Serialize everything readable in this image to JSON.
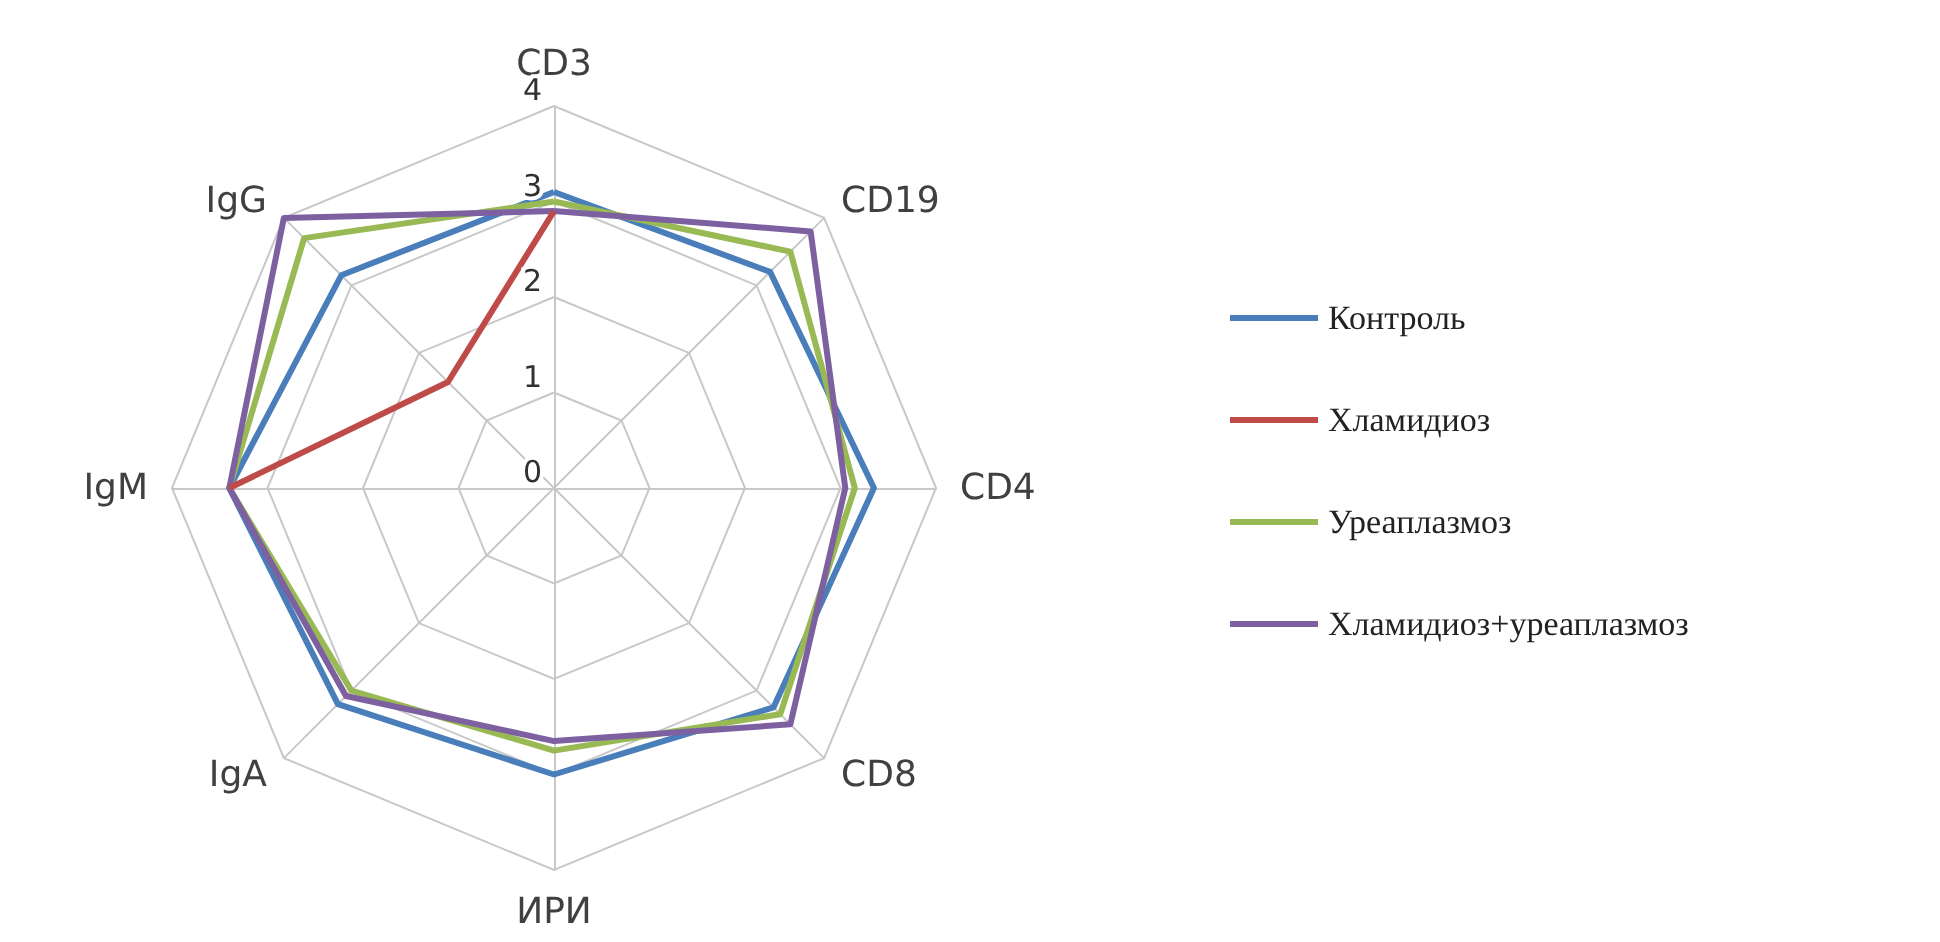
{
  "chart_data": {
    "type": "radar",
    "categories": [
      "CD3",
      "CD19",
      "CD4",
      "CD8",
      "ИРИ",
      "IgA",
      "IgM",
      "IgG"
    ],
    "ylim": [
      0,
      4
    ],
    "yticks": [
      0,
      1,
      2,
      3,
      4
    ],
    "grid": true,
    "legend": "right",
    "marker": "none",
    "line_style": "solid",
    "series": [
      {
        "name": "Контроль",
        "color": "#4a7ebb",
        "values": [
          3.1,
          3.2,
          3.35,
          3.25,
          3.0,
          3.2,
          3.4,
          3.15
        ]
      },
      {
        "name": "Хламидиоз",
        "color": "#be4b48",
        "values": [
          2.9,
          null,
          null,
          null,
          null,
          null,
          3.4,
          1.57
        ]
      },
      {
        "name": "Уреаплазмоз",
        "color": "#98b954",
        "values": [
          3.0,
          3.5,
          3.15,
          3.35,
          2.75,
          3.0,
          3.4,
          3.7
        ]
      },
      {
        "name": "Хламидиоз+уреаплазмоз",
        "color": "#7d60a0",
        "values": [
          2.9,
          3.8,
          3.05,
          3.5,
          2.65,
          3.08,
          3.4,
          4.0
        ]
      }
    ]
  }
}
